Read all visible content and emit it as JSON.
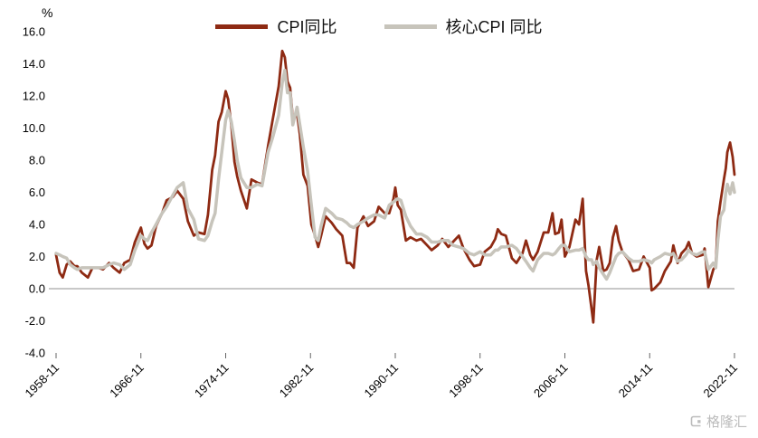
{
  "chart": {
    "watermark": "格隆汇",
    "colors": {
      "cpi": "#8E2A13",
      "core": "#C7C4BB",
      "zero_line": "#C8C8C8",
      "tick": "#666666",
      "label": "#000000"
    }
  },
  "chart_data": {
    "type": "line",
    "title": "",
    "xlabel": "",
    "ylabel": "%",
    "ylim": [
      -4,
      16
    ],
    "ytick_step": 2,
    "xlim": [
      1958.87,
      2022.87
    ],
    "grid": "zero-line-only",
    "legend_position": "top-center",
    "x_ticks": {
      "values": [
        1958.87,
        1966.87,
        1974.87,
        1982.87,
        1990.87,
        1998.87,
        2006.87,
        2014.87,
        2022.87
      ],
      "labels": [
        "1958-11",
        "1966-11",
        "1974-11",
        "1982-11",
        "1990-11",
        "1998-11",
        "2006-11",
        "2014-11",
        "2022-11"
      ]
    },
    "x": [
      1958.87,
      1959.2,
      1959.5,
      1959.87,
      1960.2,
      1960.6,
      1960.87,
      1961.3,
      1961.87,
      1962.3,
      1962.87,
      1963.3,
      1963.87,
      1964.3,
      1964.87,
      1965.3,
      1965.87,
      1966.3,
      1966.87,
      1967.2,
      1967.5,
      1967.87,
      1968.3,
      1968.87,
      1969.3,
      1969.87,
      1970.3,
      1970.87,
      1971.3,
      1971.87,
      1972.3,
      1972.87,
      1973.2,
      1973.6,
      1973.87,
      1974.2,
      1974.5,
      1974.87,
      1975.1,
      1975.4,
      1975.7,
      1975.95,
      1976.3,
      1976.87,
      1977.3,
      1977.87,
      1978.3,
      1978.87,
      1979.3,
      1979.87,
      1980.2,
      1980.45,
      1980.7,
      1980.95,
      1981.2,
      1981.6,
      1981.87,
      1982.2,
      1982.6,
      1982.95,
      1983.3,
      1983.6,
      1983.87,
      1984.3,
      1984.87,
      1985.3,
      1985.87,
      1986.3,
      1986.6,
      1986.95,
      1987.3,
      1987.87,
      1988.3,
      1988.87,
      1989.3,
      1989.87,
      1990.3,
      1990.7,
      1990.87,
      1991.1,
      1991.4,
      1991.87,
      1992.3,
      1992.87,
      1993.3,
      1993.87,
      1994.3,
      1994.87,
      1995.3,
      1995.87,
      1996.3,
      1996.87,
      1997.3,
      1997.87,
      1998.3,
      1998.87,
      1999.3,
      1999.87,
      2000.3,
      2000.55,
      2000.87,
      2001.3,
      2001.87,
      2002.3,
      2002.87,
      2003.2,
      2003.6,
      2003.87,
      2004.3,
      2004.87,
      2005.3,
      2005.7,
      2005.95,
      2006.3,
      2006.55,
      2006.87,
      2007.3,
      2007.87,
      2008.2,
      2008.55,
      2008.87,
      2009.1,
      2009.4,
      2009.55,
      2009.87,
      2010.1,
      2010.5,
      2010.8,
      2011.1,
      2011.4,
      2011.7,
      2011.95,
      2012.3,
      2012.87,
      2013.3,
      2013.87,
      2014.3,
      2014.87,
      2015.05,
      2015.3,
      2015.87,
      2016.3,
      2016.87,
      2017.1,
      2017.5,
      2017.87,
      2018.3,
      2018.55,
      2018.87,
      2019.3,
      2019.87,
      2020.05,
      2020.4,
      2020.87,
      2021.1,
      2021.3,
      2021.55,
      2021.87,
      2022.05,
      2022.2,
      2022.45,
      2022.7,
      2022.87
    ],
    "series": [
      {
        "name": "CPI同比",
        "color": "#8E2A13",
        "values": [
          2.1,
          1.0,
          0.7,
          1.5,
          1.7,
          1.4,
          1.4,
          1.0,
          0.7,
          1.3,
          1.3,
          1.2,
          1.6,
          1.3,
          1.0,
          1.6,
          1.8,
          2.9,
          3.8,
          2.8,
          2.5,
          2.7,
          3.9,
          4.7,
          5.5,
          5.7,
          6.1,
          5.6,
          4.2,
          3.3,
          3.5,
          3.4,
          4.6,
          7.4,
          8.3,
          10.4,
          11.0,
          12.3,
          11.8,
          10.2,
          7.9,
          7.0,
          6.1,
          5.0,
          6.8,
          6.6,
          6.5,
          8.9,
          10.5,
          12.6,
          14.8,
          14.4,
          12.9,
          12.5,
          10.6,
          10.9,
          9.6,
          7.1,
          6.4,
          4.0,
          3.3,
          2.6,
          3.3,
          4.5,
          4.1,
          3.7,
          3.3,
          1.6,
          1.6,
          1.3,
          3.8,
          4.5,
          3.9,
          4.2,
          5.1,
          4.7,
          4.7,
          5.6,
          6.3,
          5.2,
          4.9,
          3.0,
          3.2,
          3.0,
          3.1,
          2.7,
          2.4,
          2.7,
          3.1,
          2.6,
          2.9,
          3.3,
          2.5,
          1.8,
          1.4,
          1.5,
          2.3,
          2.6,
          3.1,
          3.7,
          3.4,
          3.3,
          1.9,
          1.6,
          2.2,
          3.0,
          2.1,
          1.8,
          2.3,
          3.5,
          3.5,
          4.7,
          3.4,
          3.5,
          4.3,
          2.0,
          2.6,
          4.3,
          4.0,
          5.6,
          1.1,
          0.2,
          -1.3,
          -2.1,
          1.8,
          2.6,
          1.1,
          1.2,
          1.6,
          3.2,
          3.9,
          3.0,
          2.3,
          1.8,
          1.1,
          1.2,
          2.0,
          1.3,
          -0.1,
          0.0,
          0.4,
          1.1,
          1.7,
          2.7,
          1.6,
          2.2,
          2.5,
          2.9,
          2.2,
          2.0,
          2.1,
          2.5,
          0.1,
          1.2,
          1.4,
          4.2,
          5.4,
          6.8,
          7.5,
          8.5,
          9.1,
          8.2,
          7.1
        ]
      },
      {
        "name": "核心CPI 同比",
        "color": "#C7C4BB",
        "values": [
          2.2,
          2.1,
          2.0,
          1.9,
          1.5,
          1.3,
          1.2,
          1.3,
          1.3,
          1.3,
          1.3,
          1.3,
          1.5,
          1.6,
          1.5,
          1.2,
          1.5,
          2.4,
          3.3,
          3.1,
          3.0,
          3.5,
          4.0,
          4.7,
          5.1,
          5.8,
          6.3,
          6.6,
          5.0,
          4.3,
          3.1,
          3.0,
          3.3,
          4.2,
          4.7,
          6.8,
          8.5,
          10.5,
          11.1,
          10.4,
          9.2,
          8.0,
          6.9,
          6.3,
          6.3,
          6.5,
          6.4,
          8.5,
          9.4,
          10.8,
          12.8,
          13.6,
          12.2,
          12.2,
          10.2,
          11.3,
          10.2,
          8.8,
          7.3,
          5.2,
          3.2,
          3.0,
          3.9,
          5.0,
          4.7,
          4.4,
          4.3,
          4.1,
          3.9,
          3.8,
          4.0,
          4.2,
          4.4,
          4.6,
          4.6,
          4.4,
          5.2,
          5.4,
          5.5,
          5.6,
          5.5,
          4.5,
          3.9,
          3.4,
          3.4,
          3.2,
          2.9,
          2.9,
          3.0,
          3.0,
          2.7,
          2.6,
          2.5,
          2.2,
          2.1,
          2.3,
          2.1,
          2.1,
          2.4,
          2.4,
          2.6,
          2.6,
          2.7,
          2.5,
          2.0,
          1.7,
          1.3,
          1.1,
          1.8,
          2.2,
          2.2,
          2.1,
          2.2,
          2.5,
          2.7,
          2.7,
          2.3,
          2.4,
          2.4,
          2.5,
          2.0,
          1.8,
          1.8,
          1.5,
          1.7,
          1.3,
          0.9,
          0.6,
          1.0,
          1.5,
          2.0,
          2.2,
          2.3,
          1.9,
          1.7,
          1.7,
          1.8,
          1.7,
          1.6,
          1.8,
          2.0,
          2.2,
          2.1,
          2.2,
          1.7,
          1.8,
          2.1,
          2.4,
          2.2,
          2.1,
          2.3,
          2.3,
          1.2,
          1.6,
          1.3,
          3.0,
          4.5,
          4.9,
          6.0,
          6.5,
          5.9,
          6.6,
          6.0
        ]
      }
    ]
  }
}
